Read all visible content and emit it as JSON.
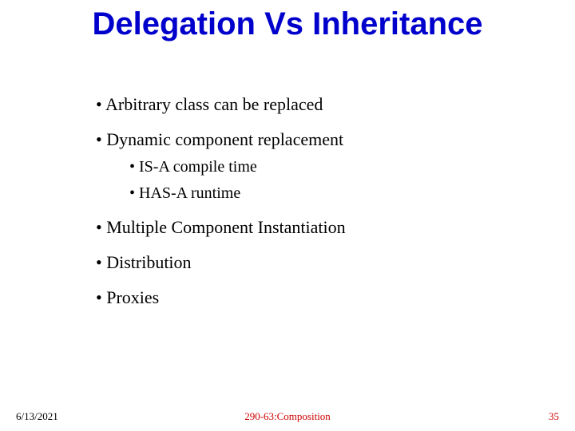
{
  "slide": {
    "title": "Delegation Vs Inheritance",
    "title_color": "#0000cc",
    "title_fontsize": 40,
    "bullets": [
      {
        "level": 1,
        "text": "Arbitrary class can be replaced"
      },
      {
        "level": 1,
        "text": "Dynamic component replacement"
      },
      {
        "level": 2,
        "text": "IS-A compile time"
      },
      {
        "level": 2,
        "text": "HAS-A runtime"
      },
      {
        "level": 1,
        "text": "Multiple Component Instantiation"
      },
      {
        "level": 1,
        "text": "Distribution"
      },
      {
        "level": 1,
        "text": "Proxies"
      }
    ],
    "body_color": "#000000",
    "body_fontsize_l1": 22,
    "body_fontsize_l2": 20,
    "bullet_char": "•",
    "footer": {
      "date": "6/13/2021",
      "center": "290-63:Composition",
      "page": "35",
      "date_color": "#000000",
      "center_color": "#cc0000",
      "page_color": "#cc0000",
      "fontsize": 13
    },
    "background_color": "#ffffff"
  }
}
